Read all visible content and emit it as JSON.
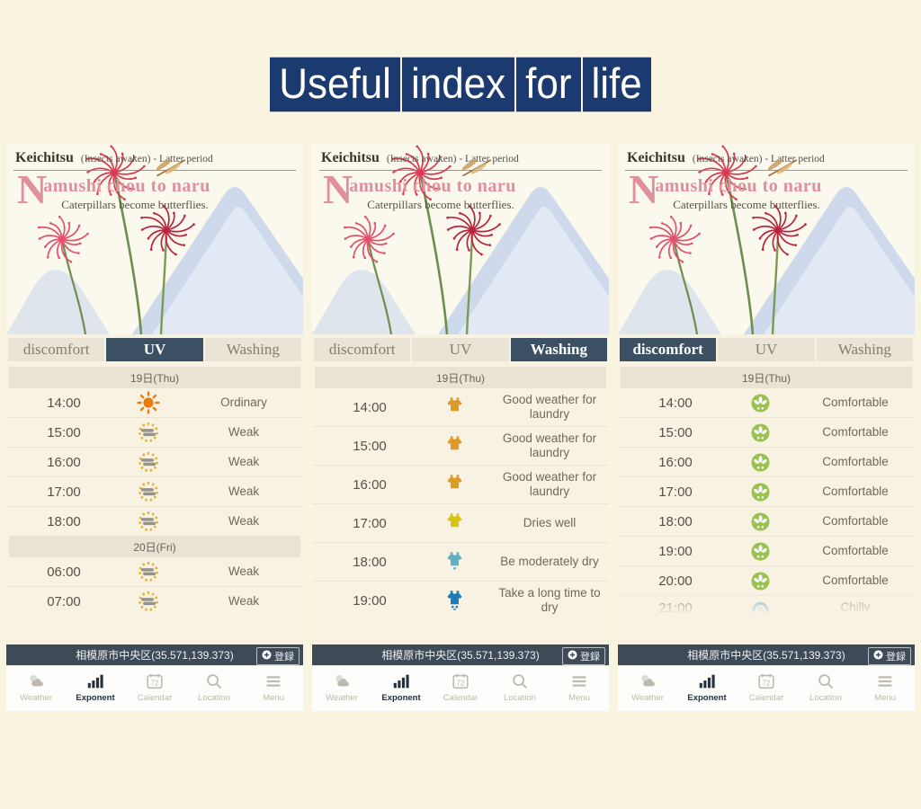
{
  "page_title": "Useful index for life",
  "colors": {
    "banner_blue": "#1a3a70",
    "tab_selected_navy": "#3c5064",
    "accent_red": "#c94f4f",
    "phrase_pink": "#e08f9c",
    "location_bar": "#3e4a57",
    "comfort_green": "#9cc153",
    "uv_sun_orange": "#e97b10",
    "laundry_orange": "#dd9a26"
  },
  "season": {
    "term": "Keichitsu",
    "term_note": "(Insects awaken) - Latter period",
    "phrase": "Namushi chou to naru",
    "phrase_translation": "Caterpillars become butterflies."
  },
  "footer": {
    "location": "相模原市中央区(35.571,139.373)",
    "register_label": "登録",
    "nav": [
      {
        "label": "Weather",
        "icon": "weather-icon",
        "active": false
      },
      {
        "label": "Exponent",
        "icon": "bar-chart-icon",
        "active": true
      },
      {
        "label": "Calendar",
        "icon": "calendar-72-icon",
        "active": false
      },
      {
        "label": "Location",
        "icon": "search-icon",
        "active": false
      },
      {
        "label": "Menu",
        "icon": "menu-icon",
        "active": false
      }
    ]
  },
  "panels": [
    {
      "name": "uv",
      "tabs": [
        "discomfort",
        "UV",
        "Washing"
      ],
      "active_tab": "UV",
      "sections": [
        {
          "date": "19日(Thu)",
          "rows": [
            {
              "time": "14:00",
              "icon": "uv-ordinary",
              "label": "Ordinary"
            },
            {
              "time": "15:00",
              "icon": "uv-weak",
              "label": "Weak"
            },
            {
              "time": "16:00",
              "icon": "uv-weak",
              "label": "Weak"
            },
            {
              "time": "17:00",
              "icon": "uv-weak",
              "label": "Weak"
            },
            {
              "time": "18:00",
              "icon": "uv-weak",
              "label": "Weak"
            }
          ]
        },
        {
          "date": "20日(Fri)",
          "rows": [
            {
              "time": "06:00",
              "icon": "uv-weak",
              "label": "Weak"
            },
            {
              "time": "07:00",
              "icon": "uv-weak",
              "label": "Weak"
            }
          ]
        }
      ]
    },
    {
      "name": "washing",
      "tabs": [
        "discomfort",
        "UV",
        "Washing"
      ],
      "active_tab": "Washing",
      "sections": [
        {
          "date": "19日(Thu)",
          "rows": [
            {
              "time": "14:00",
              "icon": "laundry-good",
              "label": "Good weather for laundry"
            },
            {
              "time": "15:00",
              "icon": "laundry-good",
              "label": "Good weather for laundry"
            },
            {
              "time": "16:00",
              "icon": "laundry-good",
              "label": "Good weather for laundry"
            },
            {
              "time": "17:00",
              "icon": "laundry-dries-well",
              "label": "Dries well"
            },
            {
              "time": "18:00",
              "icon": "laundry-moderately-dry",
              "label": "Be moderately dry"
            },
            {
              "time": "19:00",
              "icon": "laundry-slow-dry",
              "label": "Take a long time to dry"
            }
          ]
        }
      ]
    },
    {
      "name": "discomfort",
      "tabs": [
        "discomfort",
        "UV",
        "Washing"
      ],
      "active_tab": "discomfort",
      "sections": [
        {
          "date": "19日(Thu)",
          "rows": [
            {
              "time": "14:00",
              "icon": "comfortable",
              "label": "Comfortable"
            },
            {
              "time": "15:00",
              "icon": "comfortable",
              "label": "Comfortable"
            },
            {
              "time": "16:00",
              "icon": "comfortable",
              "label": "Comfortable"
            },
            {
              "time": "17:00",
              "icon": "comfortable",
              "label": "Comfortable"
            },
            {
              "time": "18:00",
              "icon": "comfortable",
              "label": "Comfortable"
            },
            {
              "time": "19:00",
              "icon": "comfortable",
              "label": "Comfortable"
            },
            {
              "time": "20:00",
              "icon": "comfortable",
              "label": "Comfortable"
            },
            {
              "time": "21:00",
              "icon": "chilly",
              "label": "Chilly",
              "clipped": true
            }
          ]
        }
      ]
    }
  ]
}
